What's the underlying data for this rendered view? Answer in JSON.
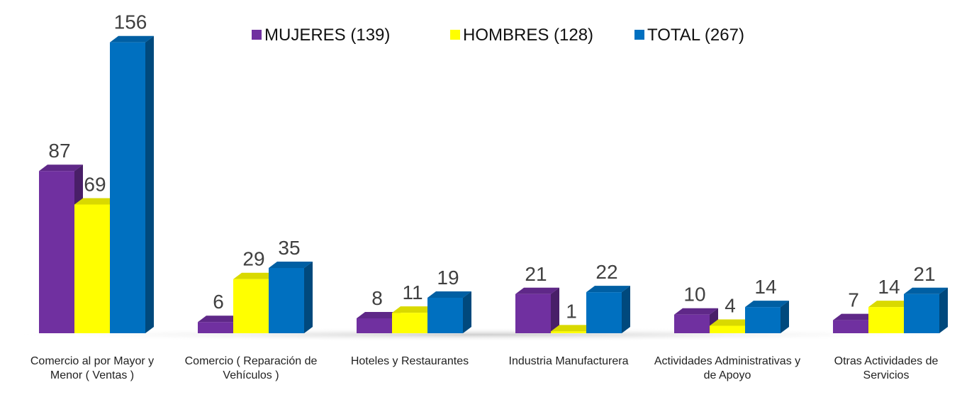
{
  "chart_data": {
    "type": "bar3d",
    "categories": [
      "Comercio al por Mayor y Menor  ( Ventas )",
      "Comercio ( Reparación de Vehículos )",
      "Hoteles y Restaurantes",
      "Industria Manufacturera",
      "Actividades Administrativas y de Apoyo",
      "Otras Actividades de Servicios"
    ],
    "series": [
      {
        "name": "MUJERES (139)",
        "color": "#7030a0",
        "values": [
          87,
          6,
          8,
          21,
          10,
          7
        ]
      },
      {
        "name": "HOMBRES (128)",
        "color": "#ffff00",
        "values": [
          69,
          29,
          11,
          1,
          4,
          14
        ]
      },
      {
        "name": "TOTAL (267)",
        "color": "#0070c0",
        "values": [
          156,
          35,
          19,
          22,
          14,
          21
        ]
      }
    ],
    "legend": "top"
  }
}
